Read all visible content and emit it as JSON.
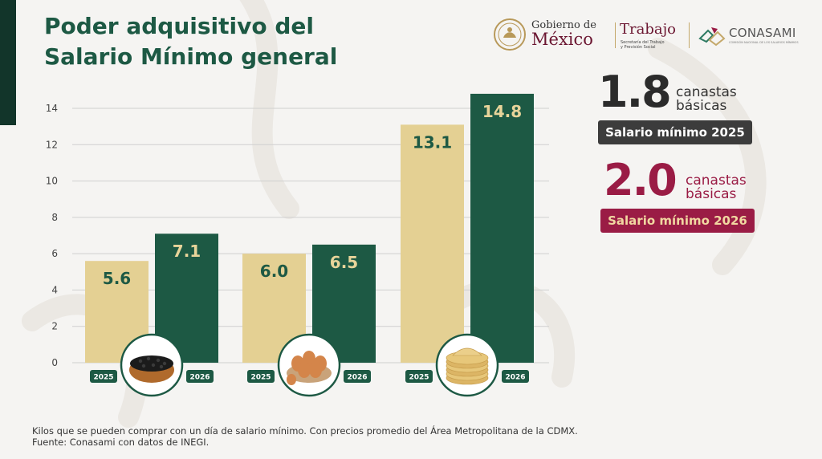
{
  "title": {
    "line1": "Poder adquisitivo del",
    "line2": "Salario Mínimo general"
  },
  "logos": {
    "gobierno": {
      "line1": "Gobierno de",
      "line2": "México"
    },
    "trabajo": {
      "main": "Trabajo",
      "sub1": "Secretaría del Trabajo",
      "sub2": "y Previsión Social"
    },
    "conasami": {
      "main": "CONASAMI",
      "sub": "COMISIÓN NACIONAL DE LOS SALARIOS MÍNIMOS"
    }
  },
  "chart_data": {
    "type": "bar",
    "title": "Poder adquisitivo del Salario Mínimo general",
    "xlabel": "",
    "ylabel": "",
    "ylim": [
      0,
      14
    ],
    "yticks": [
      0,
      2,
      4,
      6,
      8,
      10,
      12,
      14
    ],
    "grid": true,
    "categories": [
      "frijol",
      "huevo",
      "tortilla"
    ],
    "category_icons": [
      "bean-bowl-icon",
      "egg-bowl-icon",
      "tortilla-stack-icon"
    ],
    "series": [
      {
        "name": "2025",
        "color": "#e4d093",
        "label_color": "#1d5944",
        "values": [
          5.6,
          6.0,
          13.1
        ]
      },
      {
        "name": "2026",
        "color": "#1d5944",
        "label_color": "#e8d49a",
        "values": [
          7.1,
          6.5,
          14.8
        ]
      }
    ],
    "data_labels": [
      [
        "5.6",
        "6.0",
        "13.1"
      ],
      [
        "7.1",
        "6.5",
        "14.8"
      ]
    ],
    "year_tags": [
      "2025",
      "2026"
    ]
  },
  "stats": [
    {
      "value": "1.8",
      "word1": "canastas",
      "word2": "básicas",
      "badge": "Salario mínimo 2025"
    },
    {
      "value": "2.0",
      "word1": "canastas",
      "word2": "básicas",
      "badge": "Salario mínimo 2026"
    }
  ],
  "footnote": {
    "line1": "Kilos que se pueden comprar con un día de salario mínimo. Con precios promedio del Área Metropolitana de la CDMX.",
    "line2": "Fuente: Conasami con datos de INEGI."
  },
  "colors": {
    "green": "#1d5944",
    "dark_green": "#12352a",
    "cream": "#e4d093",
    "maroon": "#9a1c45",
    "gold": "#c4a86a"
  }
}
